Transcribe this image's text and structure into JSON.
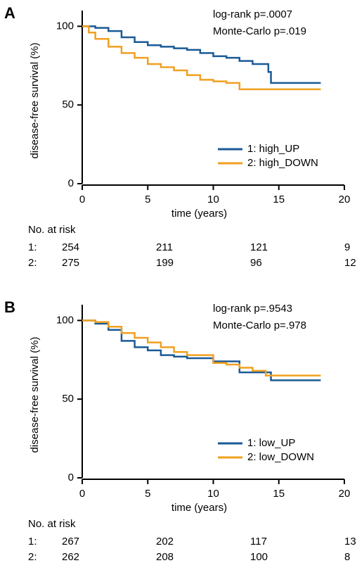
{
  "chart_data": [
    {
      "type": "step",
      "panel_label": "A",
      "x_label": "time (years)",
      "y_label": "disease-free survival (%)",
      "annotations": [
        "log-rank p=.0007",
        "Monte-Carlo p=.019"
      ],
      "xlim": [
        0,
        20
      ],
      "xticks": [
        0,
        5,
        10,
        15,
        20
      ],
      "ylim": [
        0,
        110
      ],
      "yticks": [
        0,
        50,
        100
      ],
      "series": [
        {
          "name": "1: high_UP",
          "color": "#1a5a96",
          "x": [
            0,
            1,
            2,
            3,
            4,
            5,
            6,
            7,
            8,
            9,
            10,
            11,
            12,
            13,
            14.2,
            14.4,
            18.2
          ],
          "values": [
            100,
            99,
            97,
            93,
            90,
            88,
            87,
            86,
            85,
            83,
            81,
            80,
            78,
            76,
            71,
            64,
            64
          ]
        },
        {
          "name": "2: high_DOWN",
          "color": "#f0a020",
          "x": [
            0,
            0.5,
            1,
            2,
            3,
            4,
            5,
            6,
            7,
            8,
            9,
            10,
            11,
            12,
            18.2
          ],
          "values": [
            100,
            96,
            92,
            87,
            83,
            80,
            76,
            74,
            72,
            69,
            66,
            65,
            64,
            60,
            60
          ]
        }
      ],
      "risk_table": {
        "title": "No. at risk",
        "times": [
          0,
          5,
          10,
          15
        ],
        "rows": [
          {
            "label": "1:",
            "values": [
              254,
              211,
              121,
              9
            ]
          },
          {
            "label": "2:",
            "values": [
              275,
              199,
              96,
              12
            ]
          }
        ]
      }
    },
    {
      "type": "step",
      "panel_label": "B",
      "x_label": "time (years)",
      "y_label": "disease-free survival (%)",
      "annotations": [
        "log-rank p=.9543",
        "Monte-Carlo p=.978"
      ],
      "xlim": [
        0,
        20
      ],
      "xticks": [
        0,
        5,
        10,
        15,
        20
      ],
      "ylim": [
        0,
        110
      ],
      "yticks": [
        0,
        50,
        100
      ],
      "series": [
        {
          "name": "1: low_UP",
          "color": "#1a5a96",
          "x": [
            0,
            1,
            2,
            3,
            4,
            5,
            6,
            7,
            8,
            10,
            11,
            12,
            14.2,
            14.4,
            18.2
          ],
          "values": [
            100,
            98,
            94,
            87,
            83,
            81,
            78,
            77,
            76,
            74,
            74,
            67,
            67,
            62,
            62
          ]
        },
        {
          "name": "2: low_DOWN",
          "color": "#f0a020",
          "x": [
            0,
            1,
            2,
            3,
            4,
            5,
            6,
            7,
            8,
            10,
            11,
            12,
            13,
            14,
            18.2
          ],
          "values": [
            100,
            99,
            96,
            92,
            89,
            86,
            83,
            80,
            78,
            73,
            72,
            70,
            68,
            65,
            65
          ]
        }
      ],
      "risk_table": {
        "title": "No. at risk",
        "times": [
          0,
          5,
          10,
          15
        ],
        "rows": [
          {
            "label": "1:",
            "values": [
              267,
              202,
              117,
              13
            ]
          },
          {
            "label": "2:",
            "values": [
              262,
              208,
              100,
              8
            ]
          }
        ]
      }
    }
  ]
}
